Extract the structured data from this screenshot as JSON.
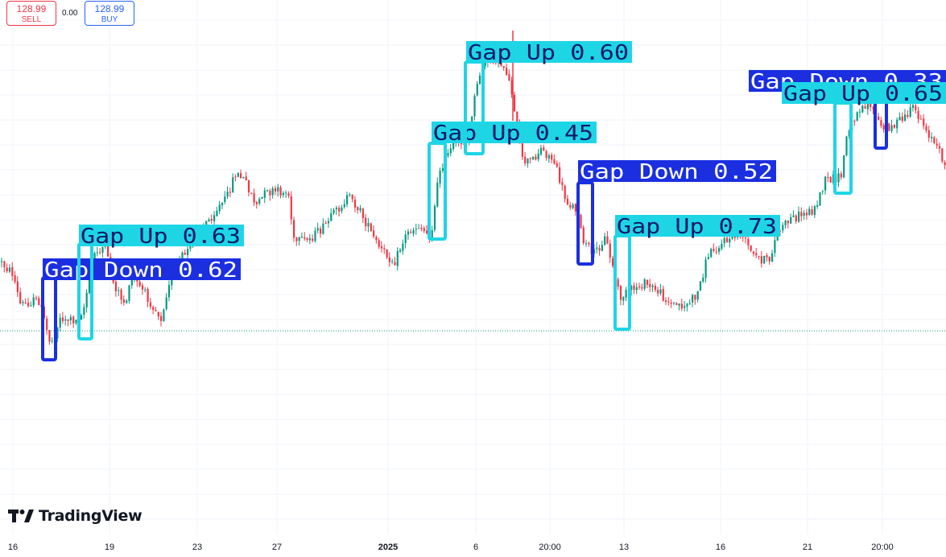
{
  "trade_panel": {
    "sell_price": "128.99",
    "sell_label": "SELL",
    "spread": "0.00",
    "buy_price": "128.99",
    "buy_label": "BUY"
  },
  "branding": {
    "logo_text": "TradingView",
    "logo_icon": "tradingview-logo-icon"
  },
  "colors": {
    "up_candle": "#089981",
    "down_candle": "#f23645",
    "gap_up_box": "#1ed5e6",
    "gap_down_box": "#1b2fe0",
    "label_text": "#0d1a6b",
    "grid": "#f0f3fa",
    "price_line": "#089981"
  },
  "chart_data": {
    "type": "candlestick",
    "x_ticks": [
      "16",
      "19",
      "23",
      "27",
      "2025",
      "6",
      "20:00",
      "13",
      "16",
      "21",
      "20:00"
    ],
    "grid": true,
    "current_price": 128.99,
    "detections": [
      {
        "label": "Gap Down 0.62",
        "class": "gap-down"
      },
      {
        "label": "Gap Up 0.63",
        "class": "gap-up"
      },
      {
        "label": "Gap Up 0.45",
        "class": "gap-up"
      },
      {
        "label": "Gap Up 0.60",
        "class": "gap-up"
      },
      {
        "label": "Gap Down 0.52",
        "class": "gap-down"
      },
      {
        "label": "Gap Up 0.73",
        "class": "gap-up"
      },
      {
        "label": "Gap Down 0.33",
        "class": "gap-down"
      },
      {
        "label": "Gap Up 0.65",
        "class": "gap-up"
      }
    ]
  }
}
